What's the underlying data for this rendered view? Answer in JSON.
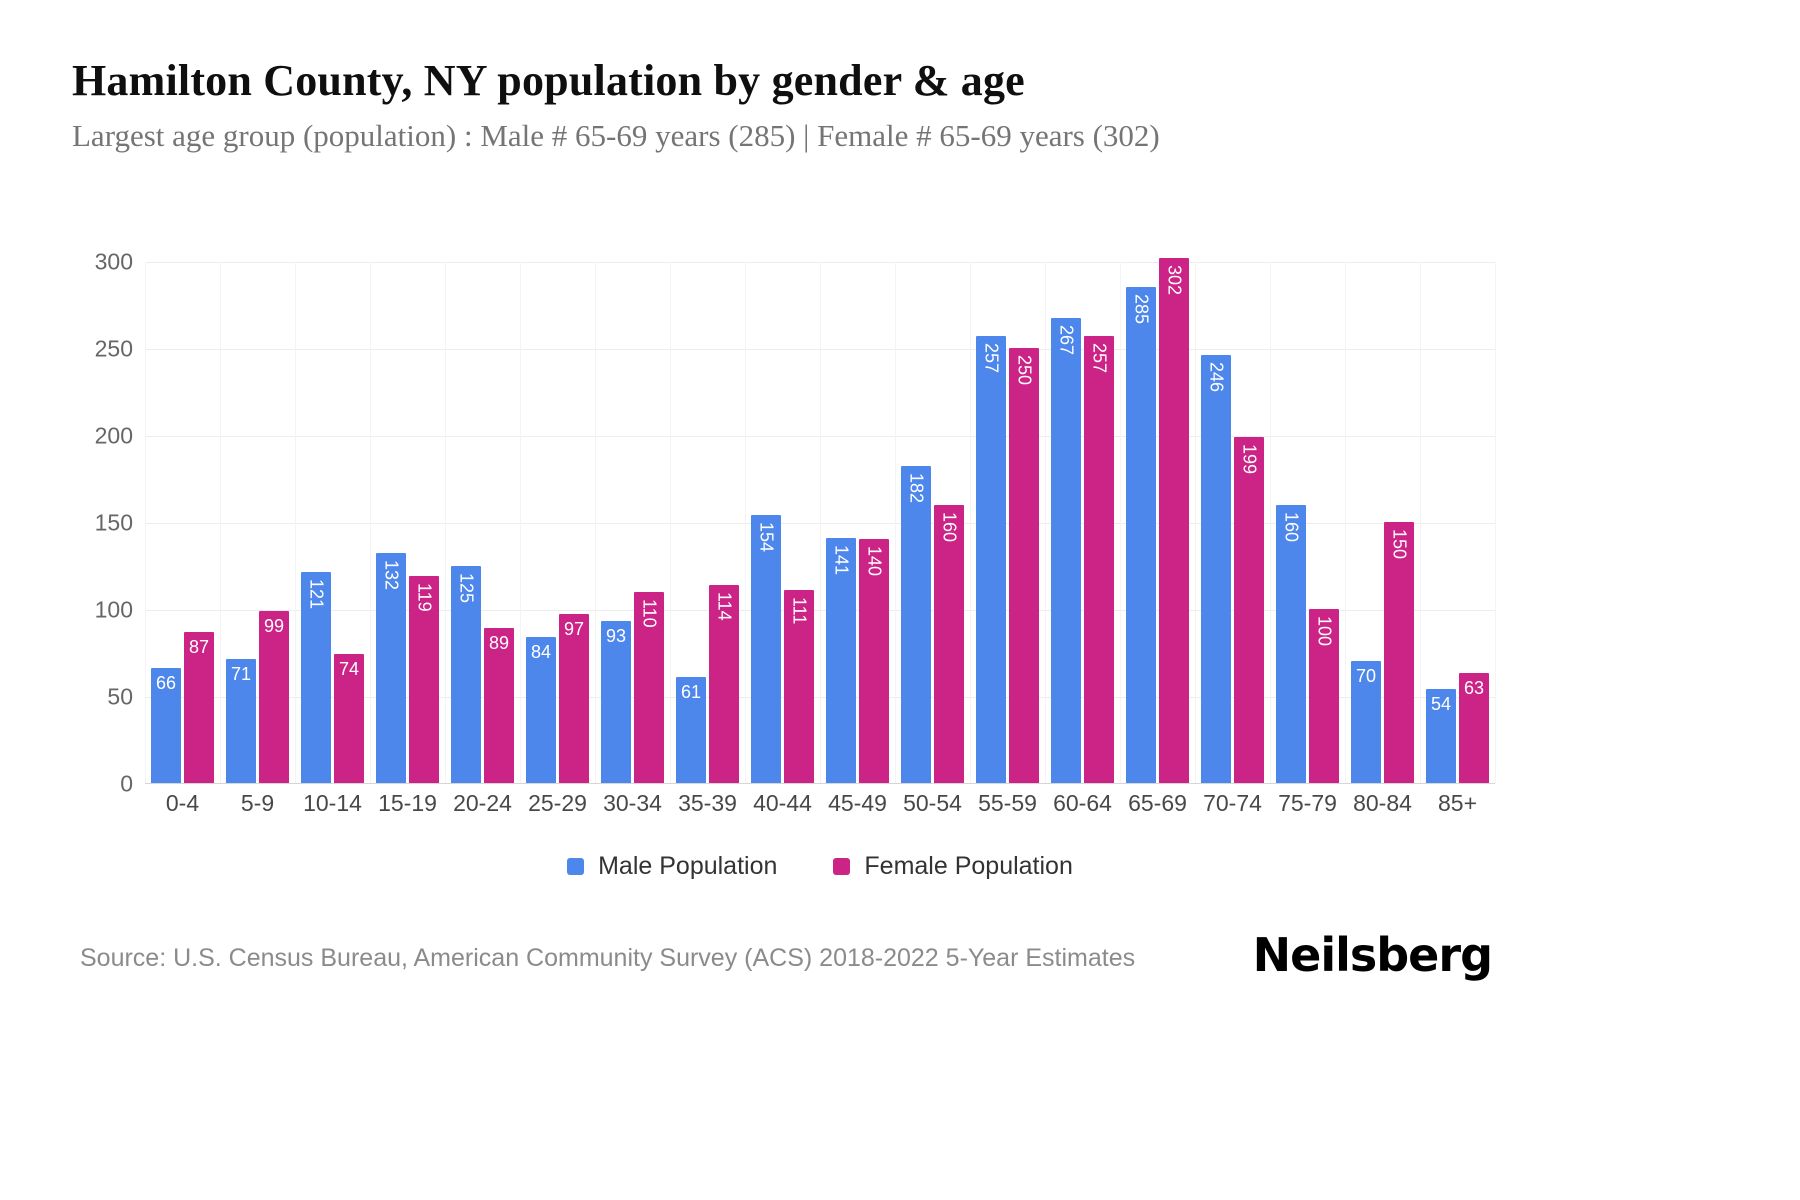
{
  "header": {
    "title": "Hamilton County, NY population by gender & age",
    "subtitle": "Largest age group (population) : Male # 65-69 years (285) | Female # 65-69 years (302)"
  },
  "footer": {
    "source": "Source: U.S. Census Bureau, American Community Survey (ACS) 2018-2022 5-Year Estimates",
    "brand": "Neilsberg"
  },
  "legend": {
    "items": [
      {
        "label": "Male Population",
        "color": "#4e87ec"
      },
      {
        "label": "Female Population",
        "color": "#cc2387"
      }
    ],
    "position": "bottom"
  },
  "chart_data": {
    "type": "bar",
    "title": "Hamilton County, NY population by gender & age",
    "subtitle": "Largest age group (population) : Male # 65-69 years (285) | Female # 65-69 years (302)",
    "xlabel": "",
    "ylabel": "",
    "categories": [
      "0-4",
      "5-9",
      "10-14",
      "15-19",
      "20-24",
      "25-29",
      "30-34",
      "35-39",
      "40-44",
      "45-49",
      "50-54",
      "55-59",
      "60-64",
      "65-69",
      "70-74",
      "75-79",
      "80-84",
      "85+"
    ],
    "series": [
      {
        "name": "Male Population",
        "color": "#4e87ec",
        "values": [
          66,
          71,
          121,
          132,
          125,
          84,
          93,
          61,
          154,
          141,
          182,
          257,
          267,
          285,
          246,
          160,
          70,
          54
        ]
      },
      {
        "name": "Female Population",
        "color": "#cc2387",
        "values": [
          87,
          99,
          74,
          119,
          89,
          97,
          110,
          114,
          111,
          140,
          160,
          250,
          257,
          302,
          199,
          100,
          150,
          63
        ]
      }
    ],
    "ylim": [
      0,
      300
    ],
    "yticks": [
      0,
      50,
      100,
      150,
      200,
      250,
      300
    ],
    "grid": true,
    "legend_position": "bottom"
  }
}
